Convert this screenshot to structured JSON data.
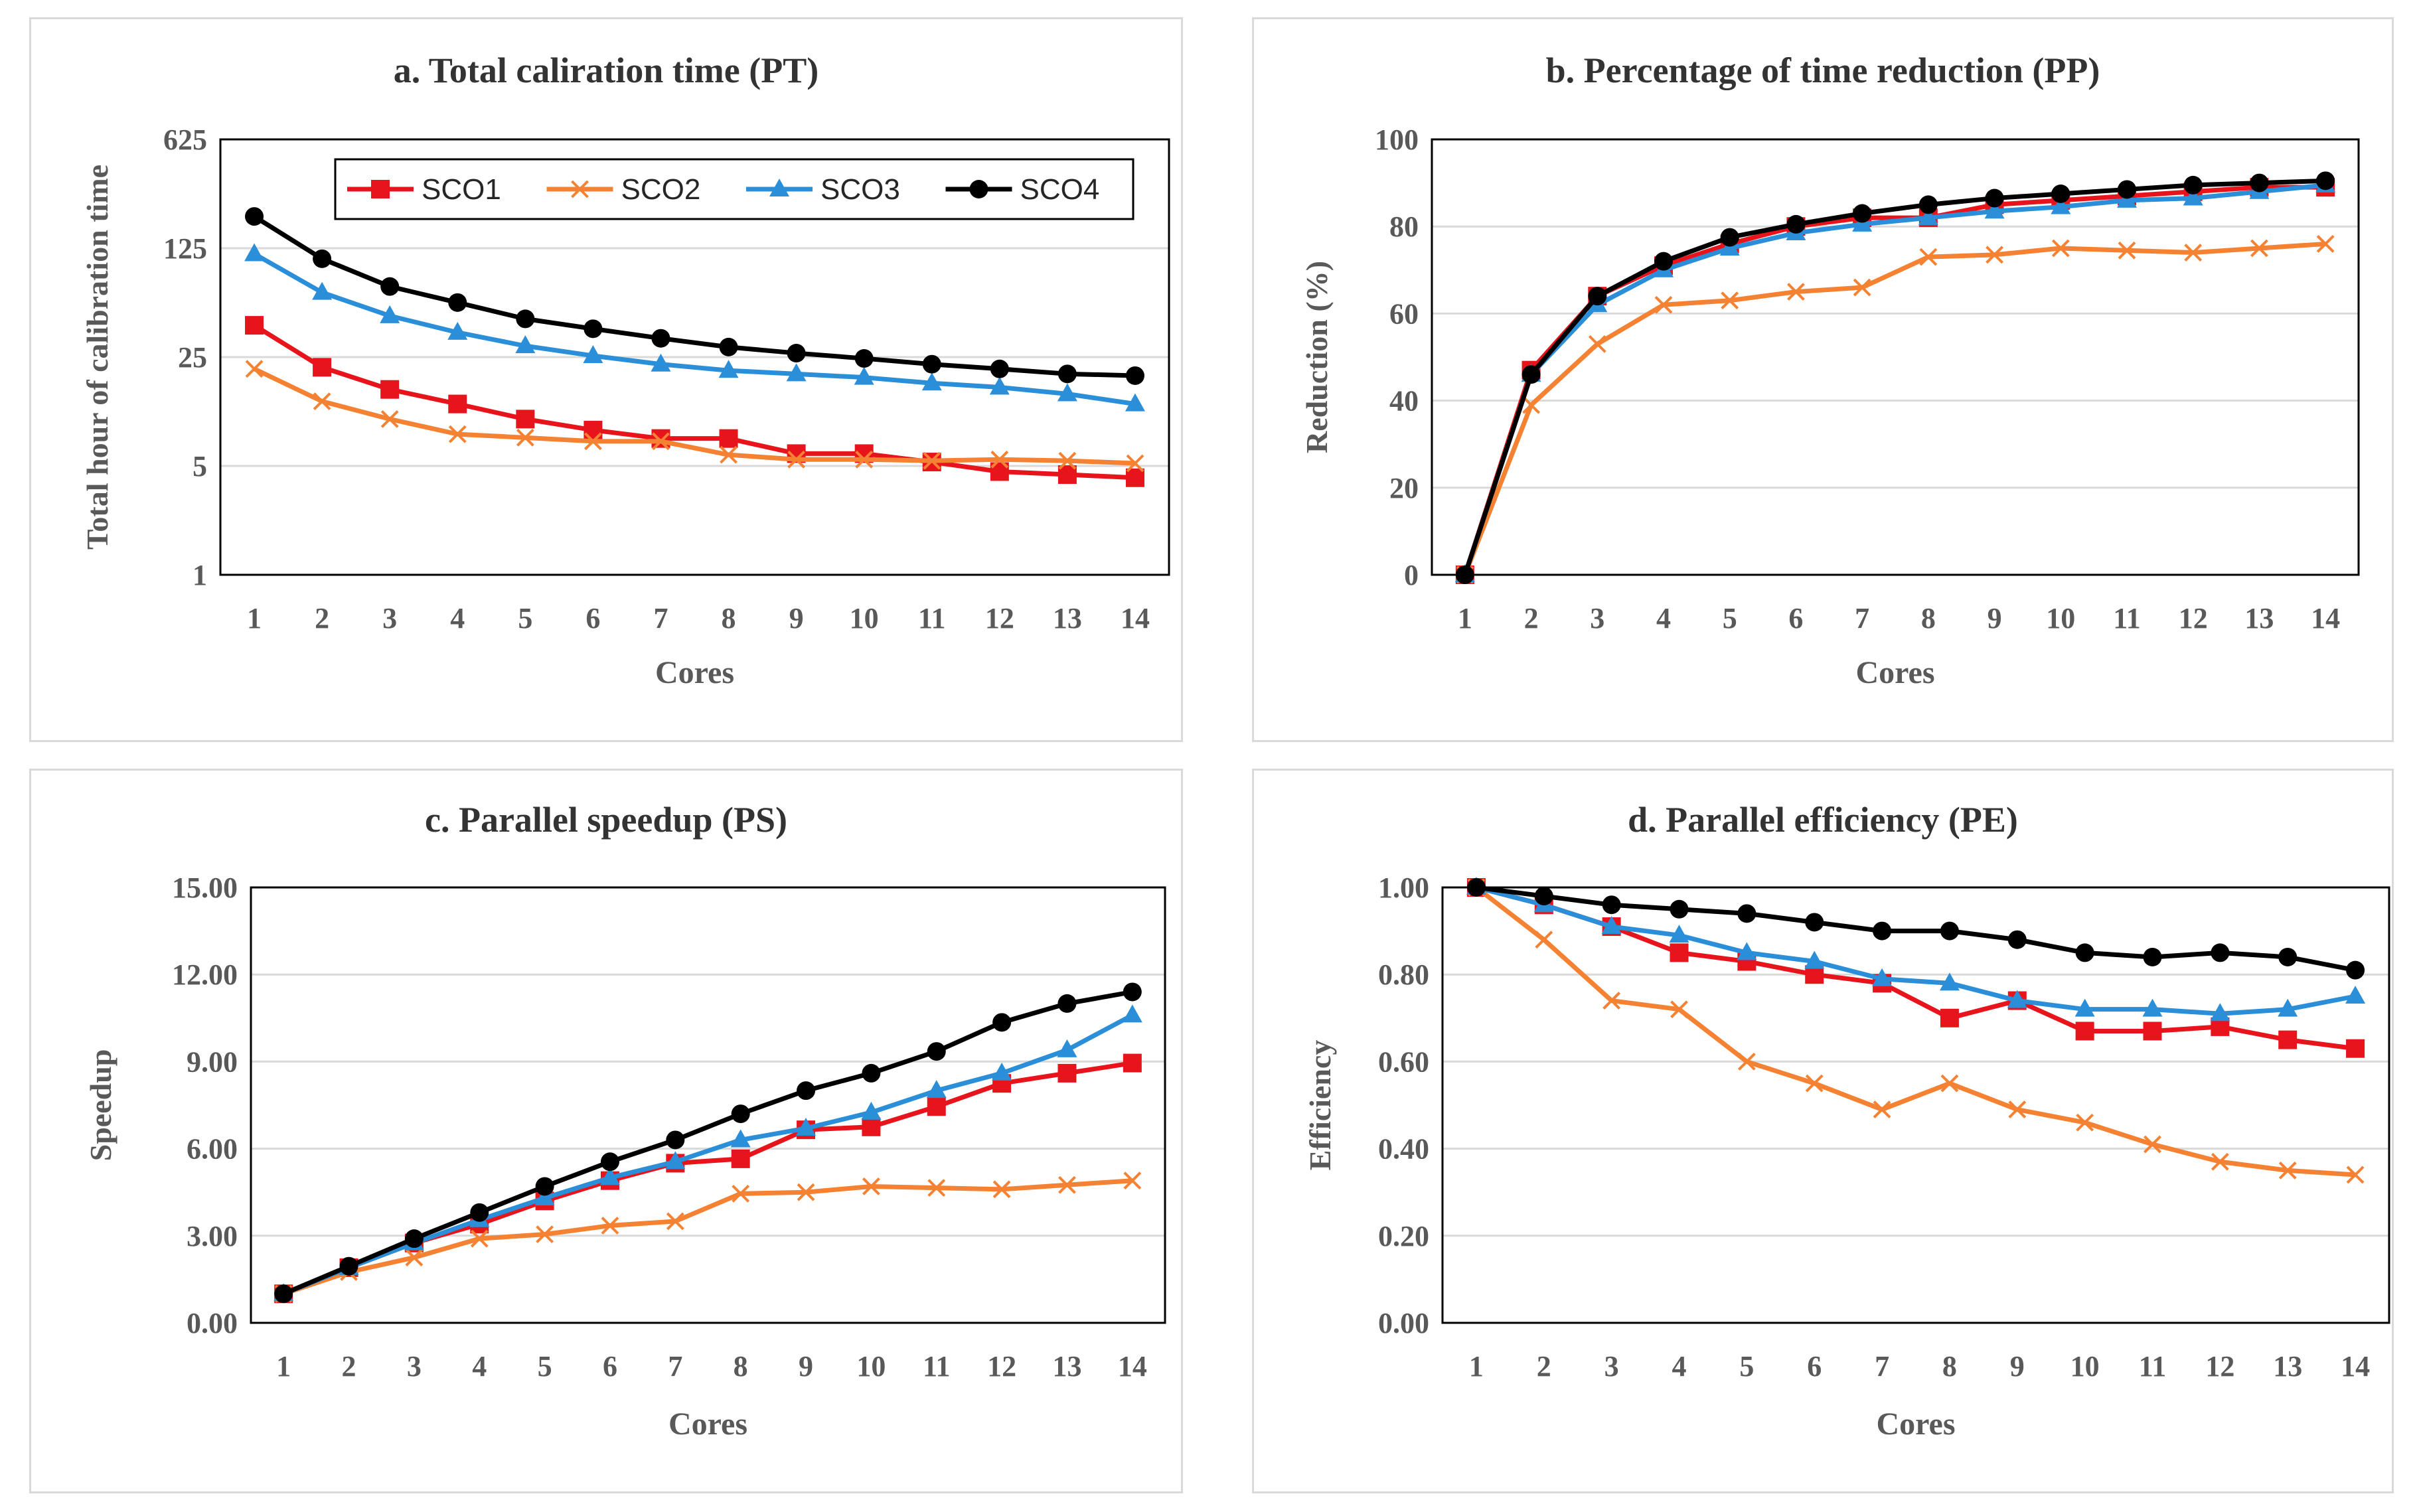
{
  "chart_data": [
    {
      "id": "a",
      "type": "line",
      "title": "a. Total caliration time (PT)",
      "xlabel": "Cores",
      "ylabel": "Total hour of calibration time",
      "yscale": "log5",
      "ylim": [
        1,
        625
      ],
      "yticks": [
        "1",
        "5",
        "25",
        "125",
        "625"
      ],
      "categories": [
        "1",
        "2",
        "3",
        "4",
        "5",
        "6",
        "7",
        "8",
        "9",
        "10",
        "11",
        "12",
        "13",
        "14"
      ],
      "legend": "top-right",
      "series": [
        {
          "name": "SCO1",
          "color": "#e8141c",
          "marker": "square",
          "values": [
            40,
            21.5,
            15.5,
            12.5,
            10,
            8.5,
            7.5,
            7.5,
            6,
            6,
            5.3,
            4.6,
            4.4,
            4.2
          ]
        },
        {
          "name": "SCO2",
          "color": "#f58233",
          "marker": "x",
          "values": [
            21,
            13,
            10,
            8,
            7.6,
            7.2,
            7.2,
            5.9,
            5.5,
            5.5,
            5.4,
            5.5,
            5.4,
            5.2
          ]
        },
        {
          "name": "SCO3",
          "color": "#2a8fd8",
          "marker": "triangle",
          "values": [
            115,
            65,
            46,
            36,
            29.5,
            25.5,
            22.5,
            20.5,
            19.5,
            18.5,
            17,
            16,
            14.5,
            12.5
          ]
        },
        {
          "name": "SCO4",
          "color": "#000000",
          "marker": "circle",
          "values": [
            200,
            107,
            71,
            56,
            44,
            38,
            33,
            29,
            26.5,
            24.5,
            22.5,
            21,
            19.5,
            19
          ]
        }
      ]
    },
    {
      "id": "b",
      "type": "line",
      "title": "b. Percentage of time reduction (PP)",
      "xlabel": "Cores",
      "ylabel": "Reduction (%)",
      "ylim": [
        0,
        100
      ],
      "yticks": [
        "0",
        "20",
        "40",
        "60",
        "80",
        "100"
      ],
      "categories": [
        "1",
        "2",
        "3",
        "4",
        "5",
        "6",
        "7",
        "8",
        "9",
        "10",
        "11",
        "12",
        "13",
        "14"
      ],
      "series": [
        {
          "name": "SCO1",
          "color": "#e8141c",
          "marker": "square",
          "values": [
            0,
            47,
            64,
            71,
            76,
            80,
            82,
            82,
            85,
            86,
            87,
            88,
            89,
            89
          ]
        },
        {
          "name": "SCO2",
          "color": "#f58233",
          "marker": "x",
          "values": [
            0,
            39,
            53,
            62,
            63,
            65,
            66,
            73,
            73.5,
            75,
            74.5,
            74,
            75,
            76
          ]
        },
        {
          "name": "SCO3",
          "color": "#2a8fd8",
          "marker": "triangle",
          "values": [
            0,
            46,
            62,
            70,
            75,
            78.5,
            80.5,
            82,
            83.5,
            84.5,
            86,
            86.5,
            88,
            89.5
          ]
        },
        {
          "name": "SCO4",
          "color": "#000000",
          "marker": "circle",
          "values": [
            0,
            46,
            64,
            72,
            77.5,
            80.5,
            83,
            85,
            86.5,
            87.5,
            88.5,
            89.5,
            90,
            90.5
          ]
        }
      ]
    },
    {
      "id": "c",
      "type": "line",
      "title": "c. Parallel speedup (PS)",
      "xlabel": "Cores",
      "ylabel": "Speedup",
      "ylim": [
        0,
        15
      ],
      "yticks": [
        "0.00",
        "3.00",
        "6.00",
        "9.00",
        "12.00",
        "15.00"
      ],
      "categories": [
        "1",
        "2",
        "3",
        "4",
        "5",
        "6",
        "7",
        "8",
        "9",
        "10",
        "11",
        "12",
        "13",
        "14"
      ],
      "series": [
        {
          "name": "SCO1",
          "color": "#e8141c",
          "marker": "square",
          "values": [
            1,
            1.9,
            2.75,
            3.4,
            4.2,
            4.9,
            5.5,
            5.65,
            6.65,
            6.75,
            7.45,
            8.25,
            8.6,
            8.95
          ]
        },
        {
          "name": "SCO2",
          "color": "#f58233",
          "marker": "x",
          "values": [
            1,
            1.75,
            2.25,
            2.9,
            3.05,
            3.35,
            3.5,
            4.45,
            4.5,
            4.7,
            4.65,
            4.6,
            4.75,
            4.9
          ]
        },
        {
          "name": "SCO3",
          "color": "#2a8fd8",
          "marker": "triangle",
          "values": [
            1,
            1.9,
            2.75,
            3.55,
            4.3,
            5.0,
            5.55,
            6.3,
            6.7,
            7.25,
            8.0,
            8.6,
            9.4,
            10.6
          ]
        },
        {
          "name": "SCO4",
          "color": "#000000",
          "marker": "circle",
          "values": [
            1,
            1.95,
            2.9,
            3.8,
            4.7,
            5.55,
            6.3,
            7.2,
            8.0,
            8.6,
            9.35,
            10.35,
            11.0,
            11.4
          ]
        }
      ]
    },
    {
      "id": "d",
      "type": "line",
      "title": "d. Parallel efficiency (PE)",
      "xlabel": "Cores",
      "ylabel": "Efficiency",
      "ylim": [
        0,
        1
      ],
      "yticks": [
        "0.00",
        "0.20",
        "0.40",
        "0.60",
        "0.80",
        "1.00"
      ],
      "categories": [
        "1",
        "2",
        "3",
        "4",
        "5",
        "6",
        "7",
        "8",
        "9",
        "10",
        "11",
        "12",
        "13",
        "14"
      ],
      "series": [
        {
          "name": "SCO1",
          "color": "#e8141c",
          "marker": "square",
          "values": [
            1.0,
            0.96,
            0.91,
            0.85,
            0.83,
            0.8,
            0.78,
            0.7,
            0.74,
            0.67,
            0.67,
            0.68,
            0.65,
            0.63
          ]
        },
        {
          "name": "SCO2",
          "color": "#f58233",
          "marker": "x",
          "values": [
            1.0,
            0.88,
            0.74,
            0.72,
            0.6,
            0.55,
            0.49,
            0.55,
            0.49,
            0.46,
            0.41,
            0.37,
            0.35,
            0.34
          ]
        },
        {
          "name": "SCO3",
          "color": "#2a8fd8",
          "marker": "triangle",
          "values": [
            1.0,
            0.96,
            0.91,
            0.89,
            0.85,
            0.83,
            0.79,
            0.78,
            0.74,
            0.72,
            0.72,
            0.71,
            0.72,
            0.75
          ]
        },
        {
          "name": "SCO4",
          "color": "#000000",
          "marker": "circle",
          "values": [
            1.0,
            0.98,
            0.96,
            0.95,
            0.94,
            0.92,
            0.9,
            0.9,
            0.88,
            0.85,
            0.84,
            0.85,
            0.84,
            0.81
          ]
        }
      ]
    }
  ]
}
